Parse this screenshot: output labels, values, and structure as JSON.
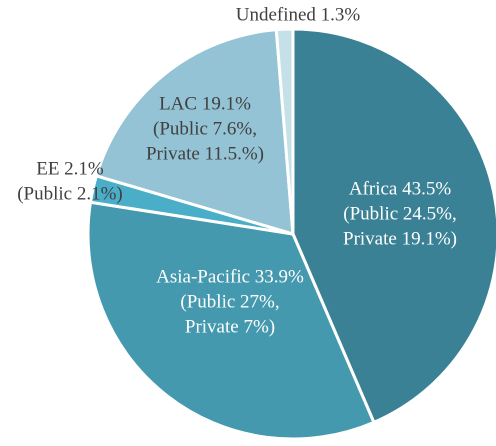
{
  "chart_data": {
    "type": "pie",
    "labels": [
      [
        "Africa 43.5%",
        "(Public 24.5%,",
        "Private 19.1%)"
      ],
      [
        "Asia-Pacific 33.9%",
        "(Public 27%,",
        "Private 7%)"
      ],
      [
        "EE 2.1%",
        "(Public 2.1%)"
      ],
      [
        "LAC 19.1%",
        "(Public 7.6%,",
        "Private 11.5.%)"
      ],
      [
        "Undefined 1.3%"
      ]
    ],
    "values": [
      43.5,
      33.9,
      2.1,
      19.1,
      1.3
    ],
    "colors": [
      "#3a8195",
      "#4599ae",
      "#4aaec8",
      "#93c3d4",
      "#c6e0ea"
    ]
  }
}
